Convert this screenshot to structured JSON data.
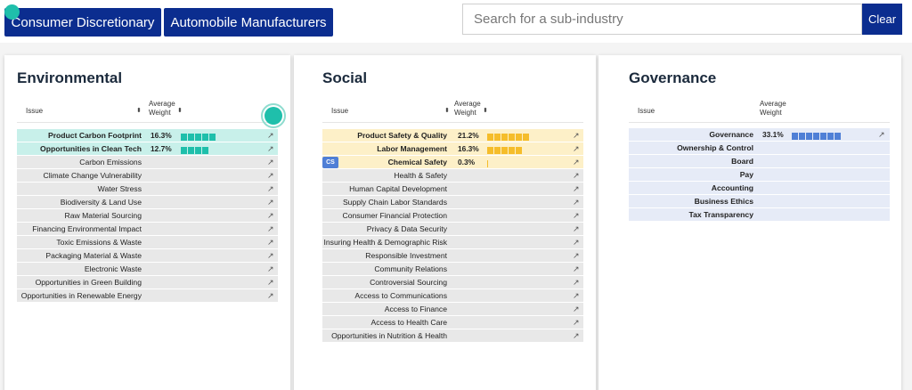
{
  "header": {
    "sector_label": "Consumer Discretionary",
    "industry_label": "Automobile Manufacturers",
    "search_placeholder": "Search for a sub-industry",
    "clear_label": "Clear"
  },
  "colors": {
    "brand_blue": "#0b2d8f",
    "teal": "#1fbfab",
    "amber": "#f5bd2b",
    "gov_blue": "#4f7fd6"
  },
  "columns": {
    "issue": "Issue",
    "weight_line1": "Average",
    "weight_line2": "Weight"
  },
  "environmental": {
    "title": "Environmental",
    "rows": [
      {
        "name": "Product Carbon Footprint",
        "pct": "16.3%",
        "segments": 5,
        "highlight": true
      },
      {
        "name": "Opportunities in Clean Tech",
        "pct": "12.7%",
        "segments": 4,
        "highlight": true
      },
      {
        "name": "Carbon Emissions",
        "pct": "",
        "segments": 0,
        "highlight": false
      },
      {
        "name": "Climate Change Vulnerability",
        "pct": "",
        "segments": 0,
        "highlight": false
      },
      {
        "name": "Water Stress",
        "pct": "",
        "segments": 0,
        "highlight": false
      },
      {
        "name": "Biodiversity & Land Use",
        "pct": "",
        "segments": 0,
        "highlight": false
      },
      {
        "name": "Raw Material Sourcing",
        "pct": "",
        "segments": 0,
        "highlight": false
      },
      {
        "name": "Financing Environmental Impact",
        "pct": "",
        "segments": 0,
        "highlight": false
      },
      {
        "name": "Toxic Emissions & Waste",
        "pct": "",
        "segments": 0,
        "highlight": false
      },
      {
        "name": "Packaging Material & Waste",
        "pct": "",
        "segments": 0,
        "highlight": false
      },
      {
        "name": "Electronic Waste",
        "pct": "",
        "segments": 0,
        "highlight": false
      },
      {
        "name": "Opportunities in Green Building",
        "pct": "",
        "segments": 0,
        "highlight": false
      },
      {
        "name": "Opportunities in Renewable Energy",
        "pct": "",
        "segments": 0,
        "highlight": false
      }
    ]
  },
  "social": {
    "title": "Social",
    "rows": [
      {
        "name": "Product Safety & Quality",
        "pct": "21.2%",
        "segments": 6,
        "highlight": true,
        "badge": ""
      },
      {
        "name": "Labor Management",
        "pct": "16.3%",
        "segments": 5,
        "highlight": true,
        "badge": ""
      },
      {
        "name": "Chemical Safety",
        "pct": "0.3%",
        "segments": 0.1,
        "highlight": true,
        "badge": "CS"
      },
      {
        "name": "Health & Safety",
        "pct": "",
        "segments": 0,
        "highlight": false,
        "badge": ""
      },
      {
        "name": "Human Capital Development",
        "pct": "",
        "segments": 0,
        "highlight": false,
        "badge": ""
      },
      {
        "name": "Supply Chain Labor Standards",
        "pct": "",
        "segments": 0,
        "highlight": false,
        "badge": ""
      },
      {
        "name": "Consumer Financial Protection",
        "pct": "",
        "segments": 0,
        "highlight": false,
        "badge": ""
      },
      {
        "name": "Privacy & Data Security",
        "pct": "",
        "segments": 0,
        "highlight": false,
        "badge": ""
      },
      {
        "name": "Insuring Health & Demographic Risk",
        "pct": "",
        "segments": 0,
        "highlight": false,
        "badge": ""
      },
      {
        "name": "Responsible Investment",
        "pct": "",
        "segments": 0,
        "highlight": false,
        "badge": ""
      },
      {
        "name": "Community Relations",
        "pct": "",
        "segments": 0,
        "highlight": false,
        "badge": ""
      },
      {
        "name": "Controversial Sourcing",
        "pct": "",
        "segments": 0,
        "highlight": false,
        "badge": ""
      },
      {
        "name": "Access to Communications",
        "pct": "",
        "segments": 0,
        "highlight": false,
        "badge": ""
      },
      {
        "name": "Access to Finance",
        "pct": "",
        "segments": 0,
        "highlight": false,
        "badge": ""
      },
      {
        "name": "Access to Health Care",
        "pct": "",
        "segments": 0,
        "highlight": false,
        "badge": ""
      },
      {
        "name": "Opportunities in Nutrition & Health",
        "pct": "",
        "segments": 0,
        "highlight": false,
        "badge": ""
      }
    ]
  },
  "governance": {
    "title": "Governance",
    "rows": [
      {
        "name": "Governance",
        "pct": "33.1%",
        "segments": 7,
        "link": true
      },
      {
        "name": "Ownership & Control",
        "pct": "",
        "segments": 0,
        "link": false
      },
      {
        "name": "Board",
        "pct": "",
        "segments": 0,
        "link": false
      },
      {
        "name": "Pay",
        "pct": "",
        "segments": 0,
        "link": false
      },
      {
        "name": "Accounting",
        "pct": "",
        "segments": 0,
        "link": false
      },
      {
        "name": "Business Ethics",
        "pct": "",
        "segments": 0,
        "link": false
      },
      {
        "name": "Tax Transparency",
        "pct": "",
        "segments": 0,
        "link": false
      }
    ]
  }
}
